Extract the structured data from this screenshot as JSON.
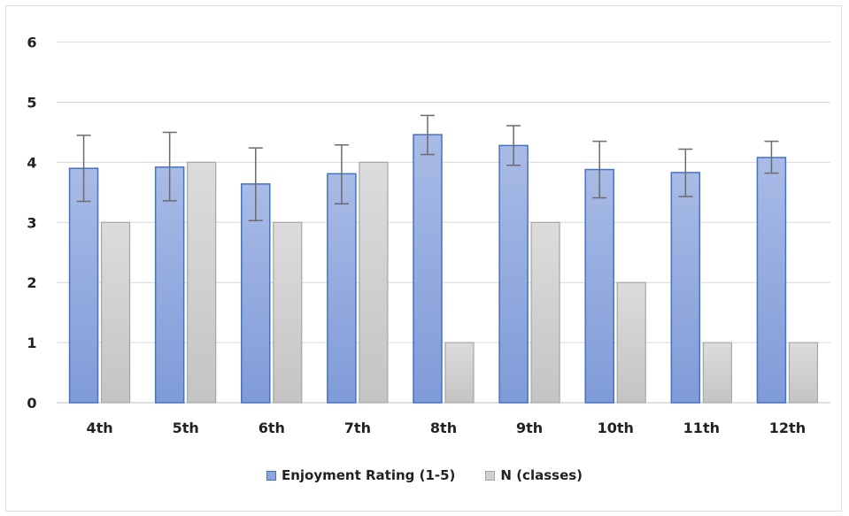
{
  "chart_data": {
    "type": "bar",
    "categories": [
      "4th",
      "5th",
      "6th",
      "7th",
      "8th",
      "9th",
      "10th",
      "11th",
      "12th"
    ],
    "series": [
      {
        "name": "Enjoyment Rating (1-5)",
        "values": [
          3.9,
          3.92,
          3.64,
          3.81,
          4.46,
          4.28,
          3.88,
          3.83,
          4.08
        ],
        "error_low": [
          3.35,
          3.36,
          3.03,
          3.31,
          4.13,
          3.95,
          3.41,
          3.43,
          3.82
        ],
        "error_high": [
          4.45,
          4.5,
          4.24,
          4.29,
          4.78,
          4.61,
          4.35,
          4.22,
          4.35
        ],
        "color": "#8ea6dc",
        "border": "#4472c4"
      },
      {
        "name": "N (classes)",
        "values": [
          3,
          4,
          3,
          4,
          1,
          3,
          2,
          1,
          1
        ],
        "color": "#d0d0d0",
        "border": "#a6a6a6"
      }
    ],
    "yticks": [
      "0",
      "1",
      "2",
      "3",
      "4",
      "5",
      "6"
    ],
    "ylim": [
      0,
      6
    ],
    "grid": true,
    "legend_position": "bottom"
  }
}
